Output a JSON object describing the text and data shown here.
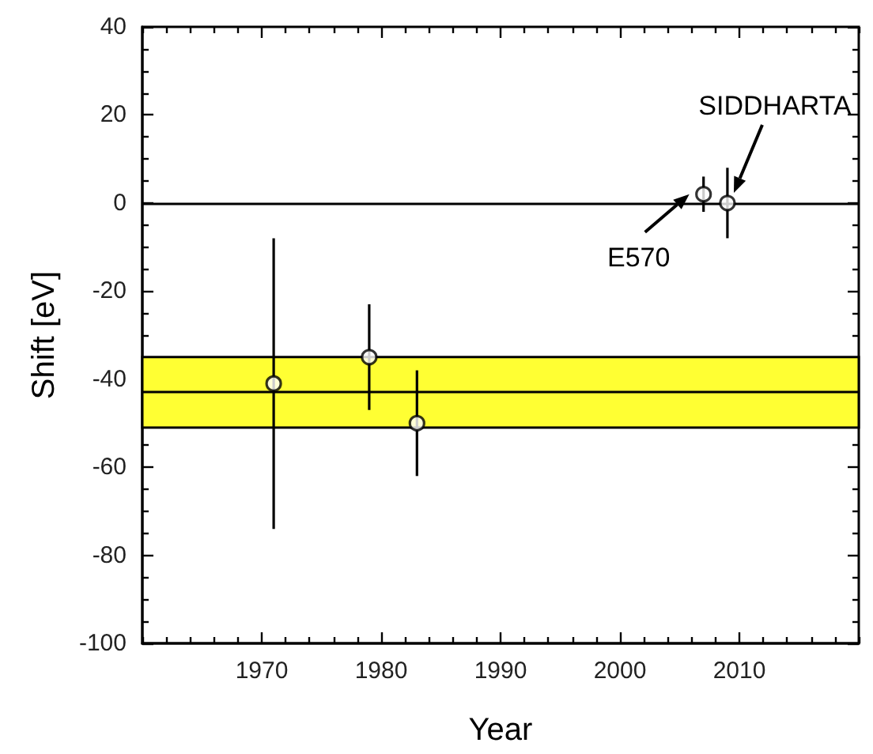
{
  "chart_data": {
    "type": "scatter",
    "xlabel": "Year",
    "ylabel": "Shift [eV]",
    "x": [
      1971,
      1979,
      1983,
      2007,
      2009
    ],
    "values": [
      -41,
      -35,
      -50,
      2,
      0
    ],
    "errors": [
      33,
      12,
      12,
      4,
      8
    ],
    "color": "#000000",
    "marker": "circle",
    "grid": false,
    "xlim": [
      1960,
      2020
    ],
    "xticks": [
      {
        "value": 1960,
        "label": null
      },
      {
        "value": 1962,
        "label": null
      },
      {
        "value": 1964,
        "label": null
      },
      {
        "value": 1966,
        "label": null
      },
      {
        "value": 1968,
        "label": null
      },
      1970,
      {
        "value": 1972,
        "label": null
      },
      {
        "value": 1974,
        "label": null
      },
      {
        "value": 1976,
        "label": null
      },
      {
        "value": 1978,
        "label": null
      },
      1980,
      {
        "value": 1982,
        "label": null
      },
      {
        "value": 1984,
        "label": null
      },
      {
        "value": 1986,
        "label": null
      },
      {
        "value": 1988,
        "label": null
      },
      1990,
      {
        "value": 1992,
        "label": null
      },
      {
        "value": 1994,
        "label": null
      },
      {
        "value": 1996,
        "label": null
      },
      {
        "value": 1998,
        "label": null
      },
      2000,
      {
        "value": 2002,
        "label": null
      },
      {
        "value": 2004,
        "label": null
      },
      {
        "value": 2006,
        "label": null
      },
      {
        "value": 2008,
        "label": null
      },
      2010,
      {
        "value": 2012,
        "label": null
      },
      {
        "value": 2014,
        "label": null
      },
      {
        "value": 2016,
        "label": null
      },
      {
        "value": 2018,
        "label": null
      },
      {
        "value": 2020,
        "label": null
      }
    ],
    "ylim": [
      -100,
      40
    ],
    "yticks": [
      -100,
      {
        "value": -95,
        "label": null
      },
      {
        "value": -90,
        "label": null
      },
      {
        "value": -85,
        "label": null
      },
      -80,
      {
        "value": -75,
        "label": null
      },
      {
        "value": -70,
        "label": null
      },
      {
        "value": -65,
        "label": null
      },
      -60,
      {
        "value": -55,
        "label": null
      },
      {
        "value": -50,
        "label": null
      },
      {
        "value": -45,
        "label": null
      },
      -40,
      {
        "value": -35,
        "label": null
      },
      {
        "value": -30,
        "label": null
      },
      {
        "value": -25,
        "label": null
      },
      -20,
      {
        "value": -15,
        "label": null
      },
      {
        "value": -10,
        "label": null
      },
      {
        "value": -5,
        "label": null
      },
      0,
      {
        "value": 5,
        "label": null
      },
      {
        "value": 10,
        "label": null
      },
      {
        "value": 15,
        "label": null
      },
      20,
      {
        "value": 25,
        "label": null
      },
      {
        "value": 30,
        "label": null
      },
      {
        "value": 35,
        "label": null
      },
      40
    ],
    "bands": [
      {
        "axis": "y",
        "from": -51,
        "to": -35,
        "color": "#ffff33"
      }
    ],
    "ref_lines": [
      {
        "axis": "y",
        "value": 0,
        "color": "#000000"
      },
      {
        "axis": "y",
        "value": -43,
        "color": "#000000"
      }
    ],
    "annotations": [
      "SIDDHARTA",
      {
        "text": "E570",
        "x": 2007,
        "y": 2
      }
    ]
  }
}
